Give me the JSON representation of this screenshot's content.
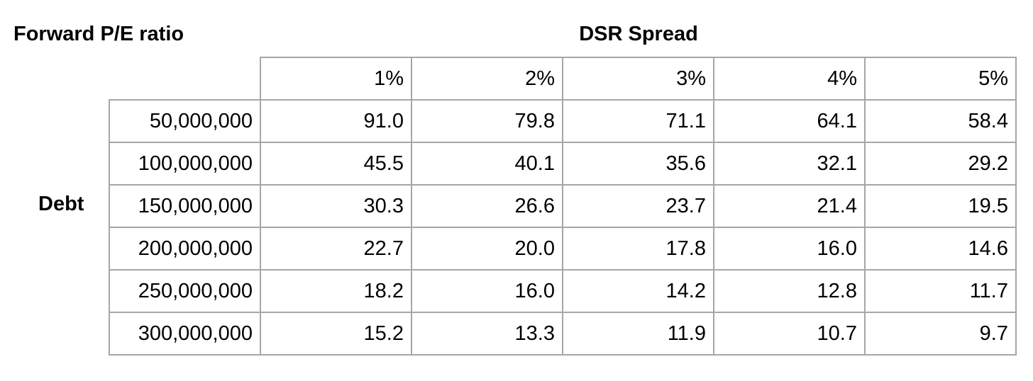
{
  "chart_data": {
    "type": "table",
    "title": "Forward P/E ratio",
    "column_header": "DSR Spread",
    "row_header": "Debt",
    "columns": [
      "1%",
      "2%",
      "3%",
      "4%",
      "5%"
    ],
    "rows": [
      {
        "label": "50,000,000",
        "values": [
          "91.0",
          "79.8",
          "71.1",
          "64.1",
          "58.4"
        ]
      },
      {
        "label": "100,000,000",
        "values": [
          "45.5",
          "40.1",
          "35.6",
          "32.1",
          "29.2"
        ]
      },
      {
        "label": "150,000,000",
        "values": [
          "30.3",
          "26.6",
          "23.7",
          "21.4",
          "19.5"
        ]
      },
      {
        "label": "200,000,000",
        "values": [
          "22.7",
          "20.0",
          "17.8",
          "16.0",
          "14.6"
        ]
      },
      {
        "label": "250,000,000",
        "values": [
          "18.2",
          "16.0",
          "14.2",
          "12.8",
          "11.7"
        ]
      },
      {
        "label": "300,000,000",
        "values": [
          "15.2",
          "13.3",
          "11.9",
          "10.7",
          "9.7"
        ]
      }
    ]
  }
}
